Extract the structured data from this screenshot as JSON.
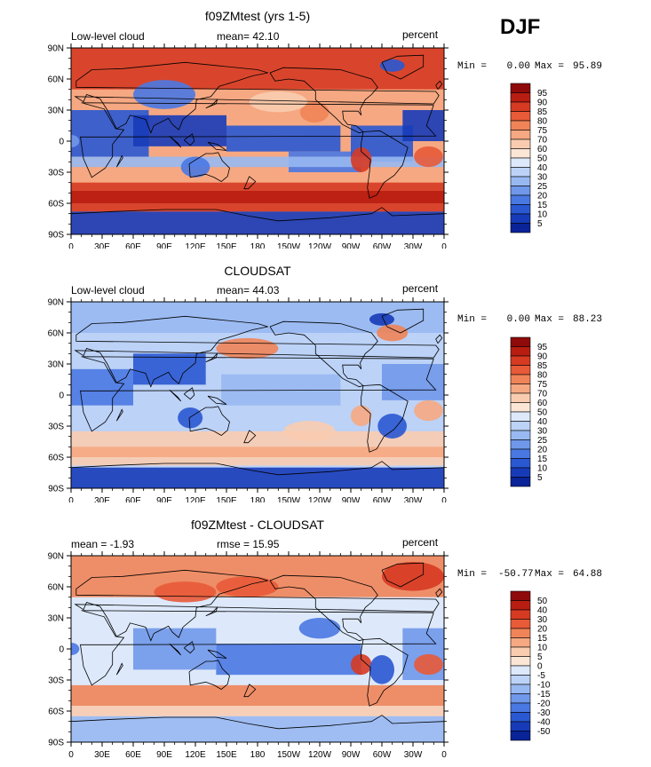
{
  "season": "DJF",
  "lat_labels": [
    "90N",
    "60N",
    "30N",
    "0",
    "30S",
    "60S",
    "90S"
  ],
  "lon_labels": [
    "0",
    "30E",
    "60E",
    "90E",
    "120E",
    "150E",
    "180",
    "150W",
    "120W",
    "90W",
    "60W",
    "30W",
    "0"
  ],
  "palette_pos": [
    "#fbe6d6",
    "#f9ccb0",
    "#f6a882",
    "#f08458",
    "#e85a38",
    "#d63a22",
    "#b81d12",
    "#8f0a0a"
  ],
  "palette_neg": [
    "#dde9fb",
    "#bcd2f7",
    "#98b8f1",
    "#7098ea",
    "#4a78e2",
    "#2a58d2",
    "#173bb8",
    "#0a2398"
  ],
  "panels": [
    {
      "title": "f09ZMtest (yrs 1-5)",
      "left_label": "Low-level cloud",
      "mean_label": "mean=  42.10",
      "right_label": "percent",
      "min_label": "Min =",
      "min_value": "0.00",
      "max_label": "Max =",
      "max_value": "95.89",
      "colorbar_labels": [
        "95",
        "90",
        "85",
        "80",
        "75",
        "70",
        "60",
        "50",
        "40",
        "30",
        "25",
        "20",
        "15",
        "10",
        "5"
      ],
      "kind": "model"
    },
    {
      "title": "CLOUDSAT",
      "left_label": "Low-level cloud",
      "mean_label": "mean=  44.03",
      "right_label": "percent",
      "min_label": "Min =",
      "min_value": "0.00",
      "max_label": "Max =",
      "max_value": "88.23",
      "colorbar_labels": [
        "95",
        "90",
        "85",
        "80",
        "75",
        "70",
        "60",
        "50",
        "40",
        "30",
        "25",
        "20",
        "15",
        "10",
        "5"
      ],
      "kind": "obs"
    },
    {
      "title": "f09ZMtest - CLOUDSAT",
      "left_label": "mean =  -1.93",
      "mean_label": "rmse =  15.95",
      "right_label": "percent",
      "min_label": "Min =",
      "min_value": "-50.77",
      "max_label": "Max =",
      "max_value": "64.88",
      "colorbar_labels": [
        "50",
        "40",
        "30",
        "20",
        "15",
        "10",
        "5",
        "0",
        "-5",
        "-10",
        "-15",
        "-20",
        "-30",
        "-40",
        "-50"
      ],
      "kind": "diff"
    }
  ]
}
